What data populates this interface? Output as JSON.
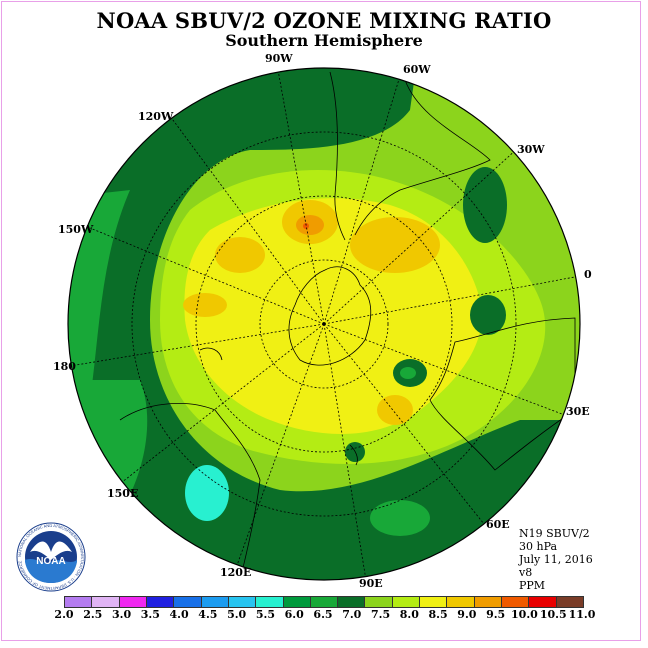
{
  "title": "NOAA SBUV/2 OZONE MIXING RATIO",
  "subtitle": "Southern Hemisphere",
  "longitudes": [
    "90W",
    "60W",
    "30W",
    "0",
    "30E",
    "60E",
    "90E",
    "120E",
    "150E",
    "180",
    "150W",
    "120W"
  ],
  "info": {
    "satellite": "N19 SBUV/2",
    "level": "30 hPa",
    "date": "July 11, 2016",
    "version": "v8",
    "units": "PPM"
  },
  "colorbar": {
    "labels": [
      "2.0",
      "2.5",
      "3.0",
      "3.5",
      "4.0",
      "4.5",
      "5.0",
      "5.5",
      "6.0",
      "6.5",
      "7.0",
      "7.5",
      "8.0",
      "8.5",
      "9.0",
      "9.5",
      "10.0",
      "10.5",
      "11.0"
    ],
    "colors": [
      "#b47cf0",
      "#e0b4f4",
      "#f028f0",
      "#2020e0",
      "#1870e8",
      "#1c9cf0",
      "#28c4f0",
      "#28f0d0",
      "#009a3c",
      "#18a838",
      "#0a6e28",
      "#8cd41c",
      "#b4ec14",
      "#f0f014",
      "#f0c800",
      "#f09c00",
      "#f05a00",
      "#e80000",
      "#7a3c28"
    ]
  },
  "logo": {
    "text": "NOAA",
    "ring_text": "NATIONAL OCEANIC AND ATMOSPHERIC ADMINISTRATION · U.S. DEPARTMENT OF COMMERCE"
  }
}
